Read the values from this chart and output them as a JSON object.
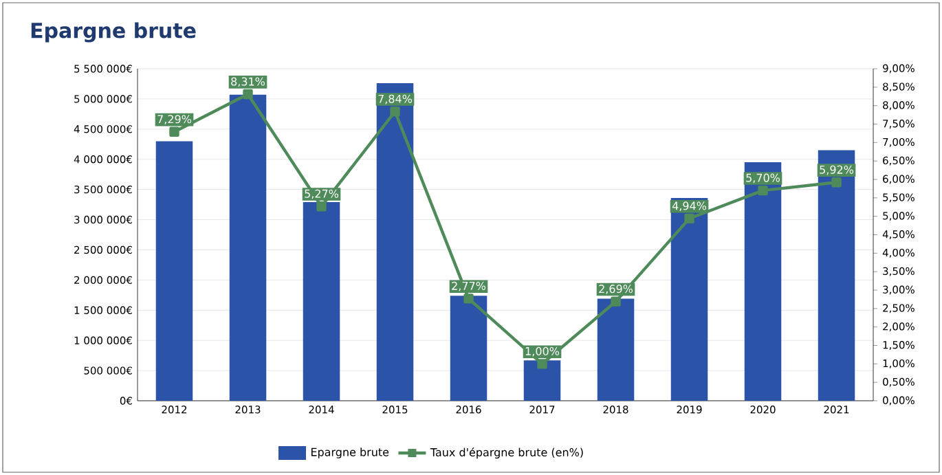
{
  "chart_data": {
    "type": "bar",
    "title": "Epargne brute",
    "categories": [
      "2012",
      "2013",
      "2014",
      "2015",
      "2016",
      "2017",
      "2018",
      "2019",
      "2020",
      "2021"
    ],
    "series": [
      {
        "name": "Epargne brute",
        "type": "bar",
        "color": "#2b53a7",
        "values": [
          4300000,
          5070000,
          3290000,
          5260000,
          1740000,
          670000,
          1690000,
          3360000,
          3950000,
          4150000
        ]
      },
      {
        "name": "Taux d'épargne brute (en%)",
        "type": "line",
        "axis": "y2",
        "color": "#4e8a5a",
        "marker": "square",
        "values": [
          7.29,
          8.31,
          5.27,
          7.84,
          2.77,
          1.0,
          2.69,
          4.94,
          5.7,
          5.92
        ],
        "value_labels": [
          "7,29%",
          "8,31%",
          "5,27%",
          "7,84%",
          "2,77%",
          "1,00%",
          "2,69%",
          "4,94%",
          "5,70%",
          "5,92%"
        ]
      }
    ],
    "ylim": [
      0,
      5500000
    ],
    "yticks": [
      {
        "value": 0,
        "label": "0€"
      },
      {
        "value": 500000,
        "label": "500 000€"
      },
      {
        "value": 1000000,
        "label": "1 000 000€"
      },
      {
        "value": 1500000,
        "label": "1 500 000€"
      },
      {
        "value": 2000000,
        "label": "2 000 000€"
      },
      {
        "value": 2500000,
        "label": "2 500 000€"
      },
      {
        "value": 3000000,
        "label": "3 000 000€"
      },
      {
        "value": 3500000,
        "label": "3 500 000€"
      },
      {
        "value": 4000000,
        "label": "4 000 000€"
      },
      {
        "value": 4500000,
        "label": "4 500 000€"
      },
      {
        "value": 5000000,
        "label": "5 000 000€"
      },
      {
        "value": 5500000,
        "label": "5 500 000€"
      }
    ],
    "y2lim": [
      0,
      9
    ],
    "y2ticks": [
      {
        "value": 0,
        "label": "0,00%"
      },
      {
        "value": 0.5,
        "label": "0,50%"
      },
      {
        "value": 1,
        "label": "1,00%"
      },
      {
        "value": 1.5,
        "label": "1,50%"
      },
      {
        "value": 2,
        "label": "2,00%"
      },
      {
        "value": 2.5,
        "label": "2,50%"
      },
      {
        "value": 3,
        "label": "3,00%"
      },
      {
        "value": 3.5,
        "label": "3,50%"
      },
      {
        "value": 4,
        "label": "4,00%"
      },
      {
        "value": 4.5,
        "label": "4,50%"
      },
      {
        "value": 5,
        "label": "5,00%"
      },
      {
        "value": 5.5,
        "label": "5,50%"
      },
      {
        "value": 6,
        "label": "6,00%"
      },
      {
        "value": 6.5,
        "label": "6,50%"
      },
      {
        "value": 7,
        "label": "7,00%"
      },
      {
        "value": 7.5,
        "label": "7,50%"
      },
      {
        "value": 8,
        "label": "8,00%"
      },
      {
        "value": 8.5,
        "label": "8,50%"
      },
      {
        "value": 9,
        "label": "9,00%"
      }
    ],
    "grid": "y",
    "legend": "bottom"
  }
}
